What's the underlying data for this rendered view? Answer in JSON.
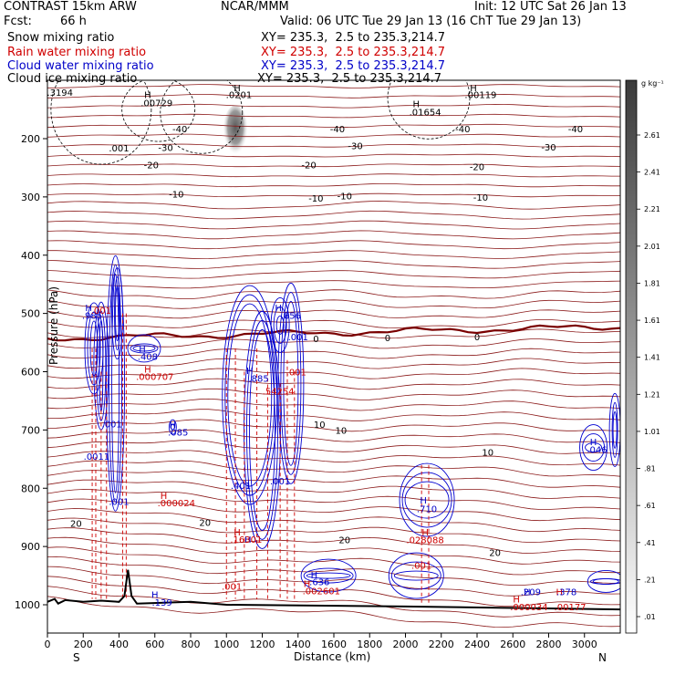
{
  "header": {
    "title": "CONTRAST 15km ARW",
    "center": "NCAR/MMM",
    "init": "Init: 12 UTC Sat 26 Jan 13",
    "fcst_label": "Fcst:",
    "fcst_value": "66 h",
    "valid": "Valid: 06 UTC Tue 29 Jan 13 (16 ChT Tue 29 Jan 13)"
  },
  "fields": [
    {
      "name": "Snow mixing ratio",
      "xy": "XY= 235.3,  2.5 to 235.3,214.7",
      "color": "#000000"
    },
    {
      "name": "Rain water mixing ratio",
      "xy": "XY= 235.3,  2.5 to 235.3,214.7",
      "color": "#d00000"
    },
    {
      "name": "Cloud water mixing ratio",
      "xy": "XY= 235.3,  2.5 to 235.3,214.7",
      "color": "#0000c8"
    },
    {
      "name": "Cloud ice mixing ratio",
      "xy": "XY= 235.3,  2.5 to 235.3,214.7",
      "color": "#000000"
    }
  ],
  "chart_data": {
    "type": "cross-section",
    "xlabel": "Distance (km)",
    "ylabel": "Pressure (hPa)",
    "xlim": [
      0,
      3200
    ],
    "ylim": [
      1050,
      100
    ],
    "x_ticks": [
      0,
      200,
      400,
      600,
      800,
      1000,
      1200,
      1400,
      1600,
      1800,
      2000,
      2200,
      2400,
      2600,
      2800,
      3000
    ],
    "y_ticks": [
      200,
      300,
      400,
      500,
      600,
      700,
      800,
      900,
      1000
    ],
    "x_end_labels": {
      "left": "S",
      "right": "N"
    },
    "colorbar": {
      "unit": "g kg⁻¹",
      "ticks": [
        "2.61",
        "2.41",
        "2.21",
        "2.01",
        "1.81",
        "1.61",
        "1.41",
        "1.21",
        "1.01",
        ".81",
        ".61",
        ".41",
        ".21",
        ".01"
      ]
    },
    "temperature_isotherms": [
      {
        "label": "-40",
        "p": 183
      },
      {
        "label": "-30",
        "p": 213
      },
      {
        "label": "-20",
        "p": 247
      },
      {
        "label": "-10",
        "p": 298
      },
      {
        "label": "0",
        "p": 543
      },
      {
        "label": "10",
        "p": 700
      },
      {
        "label": "20",
        "p": 870
      }
    ],
    "isotherm_labels": [
      {
        "text": "-40",
        "x": 740,
        "p": 183
      },
      {
        "text": "-40",
        "x": 1620,
        "p": 183
      },
      {
        "text": "-40",
        "x": 2320,
        "p": 183
      },
      {
        "text": "-40",
        "x": 2950,
        "p": 183
      },
      {
        "text": "-30",
        "x": 660,
        "p": 215
      },
      {
        "text": "-30",
        "x": 1720,
        "p": 212
      },
      {
        "text": "-30",
        "x": 2800,
        "p": 214
      },
      {
        "text": "-20",
        "x": 580,
        "p": 245
      },
      {
        "text": "-20",
        "x": 1460,
        "p": 245
      },
      {
        "text": "-20",
        "x": 2400,
        "p": 248
      },
      {
        "text": "-10",
        "x": 720,
        "p": 295
      },
      {
        "text": "-10",
        "x": 1500,
        "p": 302
      },
      {
        "text": "-10",
        "x": 1660,
        "p": 298
      },
      {
        "text": "-10",
        "x": 2420,
        "p": 300
      },
      {
        "text": "0",
        "x": 1500,
        "p": 543
      },
      {
        "text": "0",
        "x": 1900,
        "p": 541
      },
      {
        "text": "0",
        "x": 2400,
        "p": 540
      },
      {
        "text": "10",
        "x": 1520,
        "p": 690
      },
      {
        "text": "10",
        "x": 1640,
        "p": 700
      },
      {
        "text": "10",
        "x": 2460,
        "p": 738
      },
      {
        "text": "20",
        "x": 160,
        "p": 860
      },
      {
        "text": "20",
        "x": 880,
        "p": 858
      },
      {
        "text": "20",
        "x": 1660,
        "p": 888
      },
      {
        "text": "20",
        "x": 2500,
        "p": 910
      }
    ],
    "maxima_labels": [
      {
        "text": ".3194",
        "x": 70,
        "p": 120,
        "color": "#000000"
      },
      {
        "text": "H",
        "x": 560,
        "p": 124,
        "color": "#000000"
      },
      {
        "text": ".00729",
        "x": 610,
        "p": 138,
        "color": "#000000"
      },
      {
        "text": "H",
        "x": 1060,
        "p": 112,
        "color": "#000000"
      },
      {
        "text": ".0201",
        "x": 1070,
        "p": 124,
        "color": "#000000"
      },
      {
        "text": "H",
        "x": 2060,
        "p": 140,
        "color": "#000000"
      },
      {
        "text": ".01654",
        "x": 2110,
        "p": 154,
        "color": "#000000"
      },
      {
        "text": "H",
        "x": 2380,
        "p": 112,
        "color": "#000000"
      },
      {
        "text": ".00119",
        "x": 2420,
        "p": 124,
        "color": "#000000"
      },
      {
        "text": ".001",
        "x": 400,
        "p": 216,
        "color": "#000000"
      },
      {
        "text": "H",
        "x": 230,
        "p": 490,
        "color": "#0000c8"
      },
      {
        "text": ".985",
        "x": 250,
        "p": 503,
        "color": "#0000c8"
      },
      {
        "text": ".001",
        "x": 300,
        "p": 494,
        "color": "#d00000"
      },
      {
        "text": "H",
        "x": 530,
        "p": 560,
        "color": "#0000c8"
      },
      {
        "text": ".408",
        "x": 560,
        "p": 573,
        "color": "#0000c8"
      },
      {
        "text": "H",
        "x": 560,
        "p": 595,
        "color": "#d00000"
      },
      {
        "text": ".000707",
        "x": 600,
        "p": 608,
        "color": "#d00000"
      },
      {
        "text": "H",
        "x": 1130,
        "p": 598,
        "color": "#0000c8"
      },
      {
        "text": ".885",
        "x": 1180,
        "p": 611,
        "color": "#0000c8"
      },
      {
        "text": "H",
        "x": 1290,
        "p": 490,
        "color": "#0000c8"
      },
      {
        "text": ".856",
        "x": 1360,
        "p": 503,
        "color": "#0000c8"
      },
      {
        "text": ".001",
        "x": 1400,
        "p": 540,
        "color": "#0000c8"
      },
      {
        "text": ".001",
        "x": 1390,
        "p": 600,
        "color": "#d00000"
      },
      {
        "text": ".54254",
        "x": 1290,
        "p": 633,
        "color": "#d00000"
      },
      {
        "text": "H",
        "x": 700,
        "p": 690,
        "color": "#0000c8"
      },
      {
        "text": ".085",
        "x": 730,
        "p": 703,
        "color": "#0000c8"
      },
      {
        "text": ".001",
        "x": 360,
        "p": 689,
        "color": "#0000c8"
      },
      {
        "text": ".0011",
        "x": 275,
        "p": 745,
        "color": "#0000c8"
      },
      {
        "text": ".001",
        "x": 400,
        "p": 822,
        "color": "#0000c8"
      },
      {
        "text": ".401",
        "x": 1080,
        "p": 795,
        "color": "#0000c8"
      },
      {
        "text": ".001",
        "x": 1300,
        "p": 787,
        "color": "#0000c8"
      },
      {
        "text": "H",
        "x": 650,
        "p": 812,
        "color": "#d00000"
      },
      {
        "text": ".000024",
        "x": 720,
        "p": 825,
        "color": "#d00000"
      },
      {
        "text": "H",
        "x": 1060,
        "p": 875,
        "color": "#d00000"
      },
      {
        "text": "H",
        "x": 1120,
        "p": 887,
        "color": "#0000c8"
      },
      {
        "text": ".16301",
        "x": 1110,
        "p": 887,
        "color": "#d00000"
      },
      {
        "text": "H",
        "x": 2100,
        "p": 820,
        "color": "#0000c8"
      },
      {
        "text": "H",
        "x": 2110,
        "p": 875,
        "color": "#d00000"
      },
      {
        "text": ".710",
        "x": 2120,
        "p": 835,
        "color": "#0000c8"
      },
      {
        "text": ".028088",
        "x": 2110,
        "p": 888,
        "color": "#d00000"
      },
      {
        "text": ".001",
        "x": 2090,
        "p": 932,
        "color": "#d00000"
      },
      {
        "text": "H",
        "x": 1490,
        "p": 948,
        "color": "#0000c8"
      },
      {
        "text": ".636",
        "x": 1520,
        "p": 960,
        "color": "#0000c8"
      },
      {
        "text": "H",
        "x": 1450,
        "p": 963,
        "color": "#d00000"
      },
      {
        "text": ".002601",
        "x": 1530,
        "p": 976,
        "color": "#d00000"
      },
      {
        "text": ".001",
        "x": 1030,
        "p": 968,
        "color": "#d00000"
      },
      {
        "text": "H",
        "x": 600,
        "p": 982,
        "color": "#0000c8"
      },
      {
        "text": ".139",
        "x": 640,
        "p": 995,
        "color": "#0000c8"
      },
      {
        "text": "H",
        "x": 2620,
        "p": 990,
        "color": "#d00000"
      },
      {
        "text": "H",
        "x": 2680,
        "p": 977,
        "color": "#0000c8"
      },
      {
        "text": ".209",
        "x": 2700,
        "p": 977,
        "color": "#0000c8"
      },
      {
        "text": ".000034",
        "x": 2690,
        "p": 1003,
        "color": "#d00000"
      },
      {
        "text": "H",
        "x": 2860,
        "p": 977,
        "color": "#d00000"
      },
      {
        "text": ".378",
        "x": 2900,
        "p": 977,
        "color": "#0000c8"
      },
      {
        "text": ".00177",
        "x": 2920,
        "p": 1003,
        "color": "#d00000"
      },
      {
        "text": "H",
        "x": 3050,
        "p": 720,
        "color": "#0000c8"
      },
      {
        "text": ".046",
        "x": 3070,
        "p": 733,
        "color": "#0000c8"
      }
    ]
  }
}
